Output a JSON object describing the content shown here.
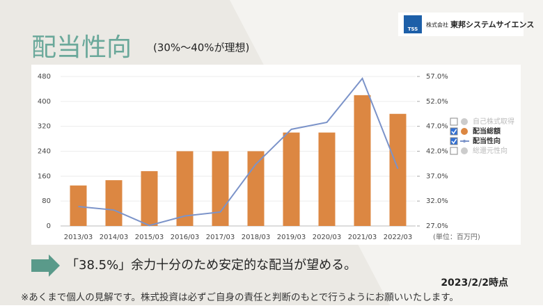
{
  "title": "配当性向",
  "subtitle": "(30%〜40%が理想)",
  "logo": {
    "mark": "TSS",
    "prefix": "株式会社",
    "company": "東邦システムサイエンス"
  },
  "chart_data": {
    "type": "bar_line",
    "categories": [
      "2013/03",
      "2014/03",
      "2015/03",
      "2016/03",
      "2017/03",
      "2018/03",
      "2019/03",
      "2020/03",
      "2021/03",
      "2022/03"
    ],
    "series": [
      {
        "name": "配当総額",
        "type": "bar",
        "color": "#dc8742",
        "values": [
          130,
          147,
          176,
          240,
          240,
          240,
          300,
          300,
          420,
          360
        ]
      },
      {
        "name": "配当性向",
        "type": "line",
        "axis": "y2",
        "color": "#7b93c9",
        "values": [
          30.9,
          30.2,
          27.1,
          29.0,
          29.8,
          39.4,
          46.4,
          47.8,
          56.6,
          38.5
        ]
      }
    ],
    "inactive_legend": [
      "自己株式取得",
      "総還元性向"
    ],
    "ylim": [
      0,
      480
    ],
    "yticks": [
      0,
      80,
      160,
      240,
      320,
      400,
      480
    ],
    "y2lim": [
      27,
      57
    ],
    "y2ticks": [
      {
        "value": 27,
        "label": "27.0%"
      },
      {
        "value": 32,
        "label": "32.0%"
      },
      {
        "value": 37,
        "label": "37.0%"
      },
      {
        "value": 42,
        "label": "42.0%"
      },
      {
        "value": 47,
        "label": "47.0%"
      },
      {
        "value": 52,
        "label": "52.0%"
      },
      {
        "value": 57,
        "label": "57.0%"
      }
    ],
    "unit": "(単位：百万円)",
    "grid": true
  },
  "message": "「38.5%」余力十分のため安定的な配当が望める。",
  "as_of": "2023/2/2時点",
  "footnote": "※あくまで個人の見解です。株式投資は必ずご自身の責任と判断のもとで行うようにお願いいたします。"
}
